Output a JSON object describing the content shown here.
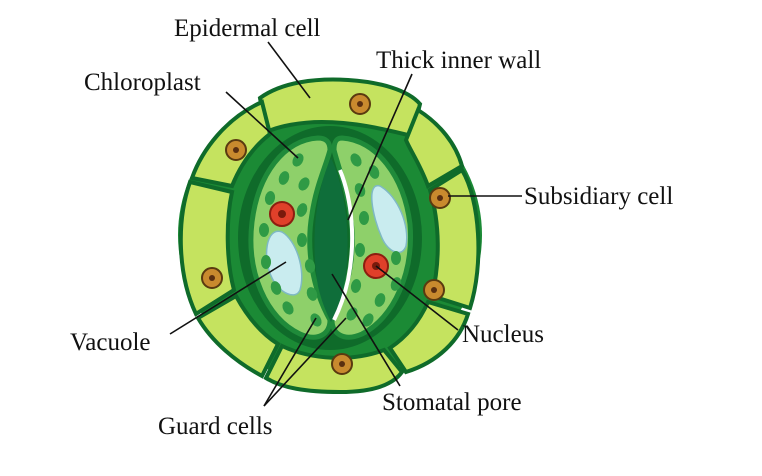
{
  "labels": {
    "epidermal_cell": "Epidermal cell",
    "chloroplast": "Chloroplast",
    "thick_inner_wall": "Thick inner wall",
    "subsidiary_cell": "Subsidiary cell",
    "vacuole": "Vacuole",
    "nucleus": "Nucleus",
    "guard_cells": "Guard cells",
    "stomatal_pore": "Stomatal pore"
  },
  "colors": {
    "outline_dark_green": "#0f6b2a",
    "subsidiary_fill": "#c5e35f",
    "guard_cell_fill": "#8ed06a",
    "guard_wall": "#1f8a3a",
    "pore": "#0f6e3a",
    "chloroplast": "#2f9a45",
    "vacuole": "#c9ecef",
    "guard_nucleus": "#e0402a",
    "subsidiary_nucleus": "#c98a2e"
  }
}
